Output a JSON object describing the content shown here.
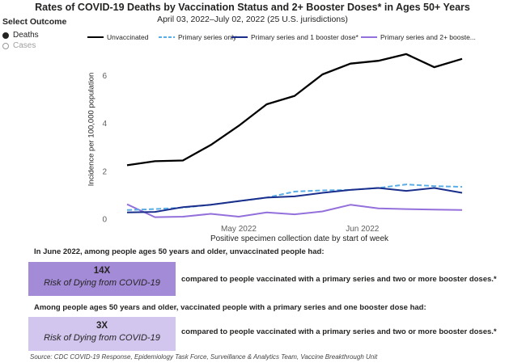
{
  "title": "Rates of COVID-19 Deaths by Vaccination Status and 2+ Booster Doses* in Ages 50+ Years",
  "subtitle": "April 03, 2022–July 02, 2022 (25 U.S. jurisdictions)",
  "selector": {
    "title": "Select Outcome",
    "options": [
      {
        "label": "Deaths",
        "selected": true
      },
      {
        "label": "Cases",
        "selected": false
      }
    ]
  },
  "legend": [
    {
      "label": "Unvaccinated",
      "color": "#000000",
      "style": "solid"
    },
    {
      "label": "Primary series only",
      "color": "#5aaee8",
      "style": "dashed"
    },
    {
      "label": "Primary series and 1 booster dose*",
      "color": "#1a2e8c",
      "style": "solid"
    },
    {
      "label": "Primary series and 2+ booste...",
      "color": "#9370db",
      "style": "solid"
    }
  ],
  "chart_data": {
    "type": "line",
    "xlabel": "Positive specimen collection date by start of week",
    "ylabel": "Incidence per 100,000 population",
    "x_tick_labels": [
      "May 2022",
      "Jun 2022"
    ],
    "x": [
      "2022-04-03",
      "2022-04-10",
      "2022-04-17",
      "2022-04-24",
      "2022-05-01",
      "2022-05-08",
      "2022-05-15",
      "2022-05-22",
      "2022-05-29",
      "2022-06-05",
      "2022-06-12",
      "2022-06-19",
      "2022-06-26"
    ],
    "ylim": [
      0,
      7.2
    ],
    "yticks": [
      0,
      2,
      4,
      6
    ],
    "grid": false,
    "legend_position": "top",
    "series": [
      {
        "name": "Unvaccinated",
        "values": [
          2.25,
          2.42,
          2.45,
          3.1,
          3.9,
          4.8,
          5.15,
          6.05,
          6.5,
          6.62,
          6.9,
          6.35,
          6.7
        ]
      },
      {
        "name": "Primary series only",
        "values": [
          0.38,
          0.42,
          0.48,
          0.6,
          0.75,
          0.9,
          1.15,
          1.2,
          1.22,
          1.3,
          1.45,
          1.38,
          1.35
        ]
      },
      {
        "name": "Primary series and 1 booster dose*",
        "values": [
          0.28,
          0.3,
          0.5,
          0.6,
          0.75,
          0.9,
          0.95,
          1.1,
          1.22,
          1.3,
          1.18,
          1.3,
          1.1
        ]
      },
      {
        "name": "Primary series and 2+ booster doses*",
        "values": [
          0.62,
          0.08,
          0.1,
          0.22,
          0.1,
          0.28,
          0.2,
          0.32,
          0.6,
          0.45,
          0.42,
          0.4,
          0.38
        ]
      }
    ]
  },
  "summary1": {
    "intro": "In June 2022, among people ages 50 years and older, unvaccinated people had:",
    "value": "14X",
    "label": "Risk of Dying from COVID-19",
    "comparison": "compared to people vaccinated with a primary series and two or more booster doses.*",
    "color": "#a48bd8"
  },
  "summary2": {
    "intro": "Among people ages 50 years and older, vaccinated people with a primary series and one booster dose had:",
    "value": "3X",
    "label": "Risk of Dying from COVID-19",
    "comparison": "compared to people vaccinated with a primary series and two or more booster doses.*",
    "color": "#d2c6ef"
  },
  "source": "Source: CDC COVID-19 Response, Epidemiology Task Force, Surveillance & Analytics Team, Vaccine Breakthrough Unit"
}
